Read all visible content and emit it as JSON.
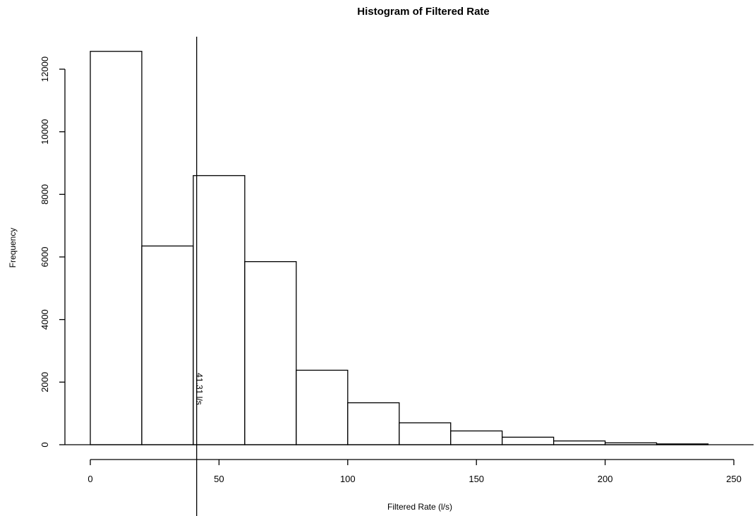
{
  "chart_data": {
    "type": "bar",
    "title": "Histogram of Filtered Rate",
    "xlabel": "Filtered Rate (l/s)",
    "ylabel": "Frequency",
    "bins": [
      {
        "start": 0,
        "end": 20,
        "count": 12570
      },
      {
        "start": 20,
        "end": 40,
        "count": 6350
      },
      {
        "start": 40,
        "end": 60,
        "count": 8600
      },
      {
        "start": 60,
        "end": 80,
        "count": 5850
      },
      {
        "start": 80,
        "end": 100,
        "count": 2380
      },
      {
        "start": 100,
        "end": 120,
        "count": 1340
      },
      {
        "start": 120,
        "end": 140,
        "count": 700
      },
      {
        "start": 140,
        "end": 160,
        "count": 440
      },
      {
        "start": 160,
        "end": 180,
        "count": 240
      },
      {
        "start": 180,
        "end": 200,
        "count": 120
      },
      {
        "start": 200,
        "end": 220,
        "count": 60
      },
      {
        "start": 220,
        "end": 240,
        "count": 25
      }
    ],
    "xlim": [
      0,
      255
    ],
    "ylim": [
      0,
      13000
    ],
    "x_ticks": [
      0,
      50,
      100,
      150,
      200,
      250
    ],
    "y_ticks": [
      0,
      2000,
      4000,
      6000,
      8000,
      10000,
      12000
    ],
    "vline": {
      "x": 41.31,
      "label": "41.31 l/s"
    },
    "grid": false,
    "legend": "none"
  }
}
